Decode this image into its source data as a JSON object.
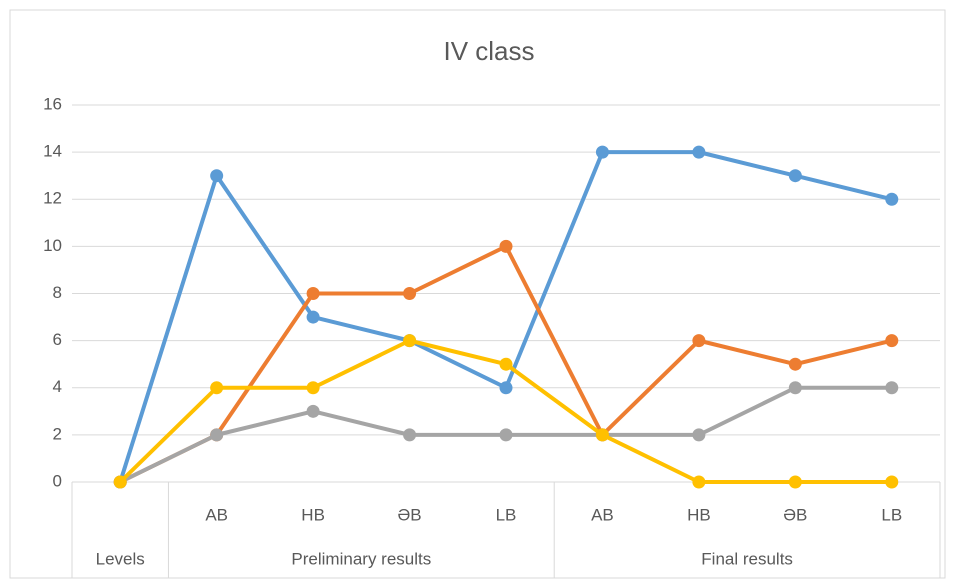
{
  "chart_data": {
    "type": "line",
    "title": "IV class",
    "category_groups": [
      {
        "label": "Levels",
        "categories": [
          null
        ]
      },
      {
        "label": "Preliminary results",
        "categories": [
          "AB",
          "HB",
          "ƏB",
          "LB"
        ]
      },
      {
        "label": "Final results",
        "categories": [
          "AB",
          "HB",
          "ƏB",
          "LB"
        ]
      }
    ],
    "series": [
      {
        "color": "#5b9bd5",
        "values": [
          0,
          13,
          7,
          6,
          4,
          14,
          14,
          13,
          12
        ]
      },
      {
        "color": "#ed7d31",
        "values": [
          0,
          2,
          8,
          8,
          10,
          2,
          6,
          5,
          6
        ]
      },
      {
        "color": "#a5a5a5",
        "values": [
          0,
          2,
          3,
          2,
          2,
          2,
          2,
          4,
          4
        ]
      },
      {
        "color": "#ffc000",
        "values": [
          0,
          4,
          4,
          6,
          5,
          2,
          0,
          0,
          0
        ]
      }
    ],
    "ylim": [
      0,
      16
    ],
    "yticks": [
      0,
      2,
      4,
      6,
      8,
      10,
      12,
      14,
      16
    ],
    "grid": true
  }
}
